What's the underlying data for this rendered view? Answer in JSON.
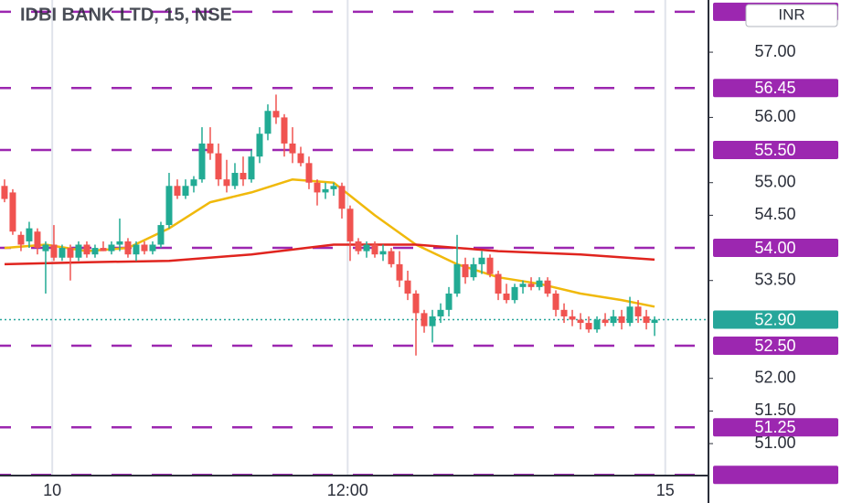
{
  "chart_data": {
    "type": "candlestick",
    "title": "IDBI BANK LTD, 15, NSE",
    "currency": "INR",
    "ylim": [
      50.51,
      57.8
    ],
    "yticks": [
      {
        "value": 57.0,
        "label": "57.00"
      },
      {
        "value": 56.0,
        "label": "56.00"
      },
      {
        "value": 55.0,
        "label": "55.00"
      },
      {
        "value": 54.5,
        "label": "54.50"
      },
      {
        "value": 53.5,
        "label": "53.50"
      },
      {
        "value": 52.0,
        "label": "52.00"
      },
      {
        "value": 51.5,
        "label": "51.50"
      },
      {
        "value": 51.0,
        "label": "51.00"
      }
    ],
    "xlim": [
      -0.55,
      85.55
    ],
    "xticks": [
      {
        "value": 5.8,
        "label": "10"
      },
      {
        "value": 41.7,
        "label": "12:00"
      },
      {
        "value": 80.3,
        "label": "15"
      }
    ],
    "up_color": "#22ab94",
    "down_color": "#f05350",
    "level_color": "#9c27b0",
    "levels": [
      {
        "value": 57.62
      },
      {
        "value": 56.45,
        "label": "56.45"
      },
      {
        "value": 55.5,
        "label": "55.50"
      },
      {
        "value": 54.0,
        "label": "54.00"
      },
      {
        "value": 52.5,
        "label": "52.50"
      },
      {
        "value": 51.25,
        "label": "51.25"
      },
      {
        "value": 50.52
      }
    ],
    "last_price": {
      "value": 52.9,
      "label": "52.90",
      "color": "#26a69a"
    },
    "open": [
      54.95,
      54.85,
      54.2,
      54.1,
      54.25,
      53.95,
      54.05,
      53.85,
      54.0,
      53.85,
      54.05,
      53.9,
      54.0,
      53.95,
      54.05,
      54.1,
      53.9,
      54.05,
      53.95,
      54.05,
      54.35,
      54.95,
      54.8,
      54.95,
      55.05,
      55.6,
      55.45,
      55.05,
      54.95,
      55.15,
      55.05,
      55.4,
      55.75,
      56.1,
      56.0,
      55.6,
      55.45,
      55.3,
      55.0,
      54.85,
      54.9,
      54.95,
      54.6,
      54.1,
      53.95,
      54.05,
      53.9,
      53.95,
      53.75,
      53.5,
      53.3,
      53.0,
      52.8,
      52.95,
      53.05,
      53.3,
      53.75,
      53.55,
      53.75,
      53.85,
      53.6,
      53.3,
      53.2,
      53.4,
      53.45,
      53.4,
      53.5,
      53.3,
      53.05,
      52.95,
      52.9,
      52.85,
      52.75,
      52.9,
      52.85,
      52.95,
      52.85,
      53.1,
      52.95,
      52.85
    ],
    "high": [
      55.05,
      54.9,
      54.25,
      54.4,
      54.3,
      54.1,
      54.35,
      54.05,
      54.05,
      54.1,
      54.1,
      54.05,
      54.1,
      54.1,
      54.45,
      54.15,
      54.1,
      54.1,
      54.1,
      54.4,
      55.15,
      55.05,
      55.05,
      55.1,
      55.85,
      55.85,
      55.6,
      55.35,
      55.3,
      55.4,
      55.5,
      55.85,
      56.2,
      56.35,
      56.05,
      55.85,
      55.55,
      55.4,
      55.05,
      55.0,
      55.0,
      55.0,
      54.65,
      54.15,
      54.1,
      54.1,
      54.05,
      54.0,
      53.95,
      53.65,
      53.35,
      53.05,
      53.05,
      53.15,
      53.4,
      54.2,
      53.85,
      53.85,
      53.95,
      53.9,
      53.65,
      53.45,
      53.45,
      53.5,
      53.55,
      53.55,
      53.55,
      53.35,
      53.15,
      53.05,
      53.0,
      52.95,
      52.95,
      53.0,
      53.05,
      53.05,
      53.25,
      53.2,
      53.05,
      52.95
    ],
    "low": [
      54.7,
      54.2,
      53.95,
      54.0,
      53.9,
      53.3,
      53.8,
      53.8,
      53.5,
      53.8,
      53.85,
      53.85,
      53.95,
      53.9,
      53.95,
      53.85,
      53.8,
      53.9,
      53.9,
      54.0,
      54.3,
      54.75,
      54.75,
      54.85,
      55.0,
      55.35,
      54.95,
      54.85,
      54.9,
      54.95,
      55.0,
      55.3,
      55.65,
      55.9,
      55.4,
      55.3,
      55.25,
      54.9,
      54.65,
      54.75,
      54.8,
      54.45,
      53.8,
      53.9,
      53.85,
      53.85,
      53.8,
      53.7,
      53.4,
      53.2,
      52.35,
      52.7,
      52.55,
      52.85,
      52.95,
      53.25,
      53.45,
      53.5,
      53.6,
      53.55,
      53.2,
      53.15,
      53.15,
      53.3,
      53.35,
      53.35,
      53.25,
      52.95,
      52.85,
      52.8,
      52.75,
      52.7,
      52.7,
      52.8,
      52.8,
      52.75,
      52.8,
      52.85,
      52.75,
      52.65
    ],
    "close": [
      54.75,
      54.25,
      54.05,
      54.3,
      54.0,
      54.05,
      53.85,
      54.0,
      53.85,
      54.05,
      53.9,
      54.0,
      53.95,
      54.05,
      54.1,
      53.9,
      54.05,
      53.95,
      54.05,
      54.35,
      54.95,
      54.8,
      54.95,
      55.05,
      55.6,
      55.45,
      55.05,
      54.95,
      55.15,
      55.05,
      55.4,
      55.75,
      56.1,
      56.0,
      55.6,
      55.45,
      55.3,
      55.0,
      54.85,
      54.9,
      54.95,
      54.6,
      54.1,
      53.95,
      54.05,
      53.9,
      53.95,
      53.75,
      53.5,
      53.3,
      53.0,
      52.8,
      52.95,
      53.05,
      53.3,
      53.75,
      53.55,
      53.75,
      53.85,
      53.6,
      53.3,
      53.2,
      53.4,
      53.45,
      53.4,
      53.5,
      53.3,
      53.05,
      52.95,
      52.9,
      52.85,
      52.75,
      52.9,
      52.85,
      52.95,
      52.85,
      53.1,
      52.95,
      52.85,
      52.9
    ],
    "moving_averages": [
      {
        "color": "#f0b90b",
        "x": [
          0,
          5,
          10,
          15,
          20,
          25,
          30,
          35,
          40,
          45,
          50,
          55,
          60,
          65,
          70,
          75,
          79
        ],
        "values": [
          54.0,
          54.05,
          53.95,
          54.0,
          54.3,
          54.7,
          54.85,
          55.05,
          55.0,
          54.5,
          54.05,
          53.75,
          53.55,
          53.45,
          53.3,
          53.2,
          53.1
        ]
      },
      {
        "color": "#e0241e",
        "x": [
          0,
          10,
          20,
          30,
          40,
          50,
          60,
          70,
          79
        ],
        "values": [
          53.75,
          53.78,
          53.8,
          53.9,
          54.05,
          54.05,
          53.95,
          53.9,
          53.82
        ]
      }
    ]
  }
}
